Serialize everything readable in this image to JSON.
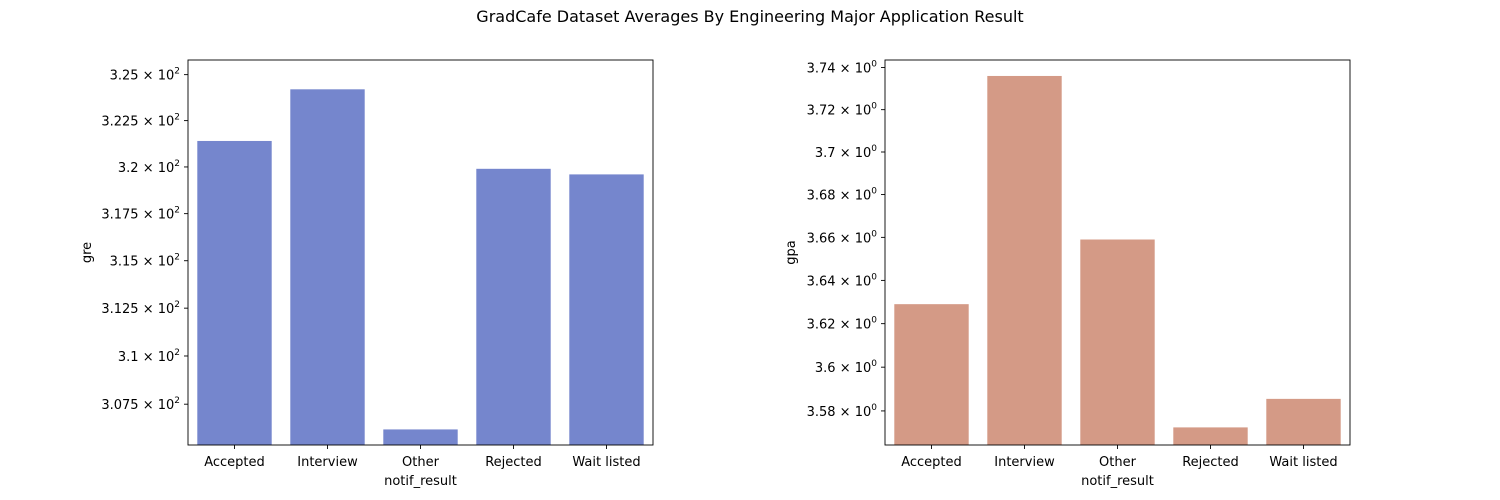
{
  "figure": {
    "title": "GradCafe Dataset Averages By Engineering Major Application Result"
  },
  "chart_data": [
    {
      "type": "bar",
      "categories": [
        "Accepted",
        "Interview",
        "Other",
        "Rejected",
        "Wait listed"
      ],
      "values": [
        321.4,
        324.2,
        306.2,
        319.9,
        319.6
      ],
      "xlabel": "notif_result",
      "ylabel": "gre",
      "ylim": [
        305.4,
        325.8
      ],
      "yscale": "log",
      "yticks": [
        307.5,
        310,
        312.5,
        315,
        317.5,
        320,
        322.5,
        325
      ],
      "ytick_labels": [
        {
          "mantissa": "3.075",
          "exp": "2"
        },
        {
          "mantissa": "3.1",
          "exp": "2"
        },
        {
          "mantissa": "3.125",
          "exp": "2"
        },
        {
          "mantissa": "3.15",
          "exp": "2"
        },
        {
          "mantissa": "3.175",
          "exp": "2"
        },
        {
          "mantissa": "3.2",
          "exp": "2"
        },
        {
          "mantissa": "3.225",
          "exp": "2"
        },
        {
          "mantissa": "3.25",
          "exp": "2"
        }
      ],
      "color": "#7586cd",
      "grid": false
    },
    {
      "type": "bar",
      "categories": [
        "Accepted",
        "Interview",
        "Other",
        "Rejected",
        "Wait listed"
      ],
      "values": [
        3.629,
        3.736,
        3.659,
        3.5725,
        3.5855
      ],
      "xlabel": "notif_result",
      "ylabel": "gpa",
      "ylim": [
        3.5645,
        3.7436
      ],
      "yscale": "log",
      "yticks": [
        3.58,
        3.6,
        3.62,
        3.64,
        3.66,
        3.68,
        3.7,
        3.72,
        3.74
      ],
      "ytick_labels": [
        {
          "mantissa": "3.58",
          "exp": "0"
        },
        {
          "mantissa": "3.6",
          "exp": "0"
        },
        {
          "mantissa": "3.62",
          "exp": "0"
        },
        {
          "mantissa": "3.64",
          "exp": "0"
        },
        {
          "mantissa": "3.66",
          "exp": "0"
        },
        {
          "mantissa": "3.68",
          "exp": "0"
        },
        {
          "mantissa": "3.7",
          "exp": "0"
        },
        {
          "mantissa": "3.72",
          "exp": "0"
        },
        {
          "mantissa": "3.74",
          "exp": "0"
        }
      ],
      "color": "#d49a86",
      "grid": false
    }
  ]
}
